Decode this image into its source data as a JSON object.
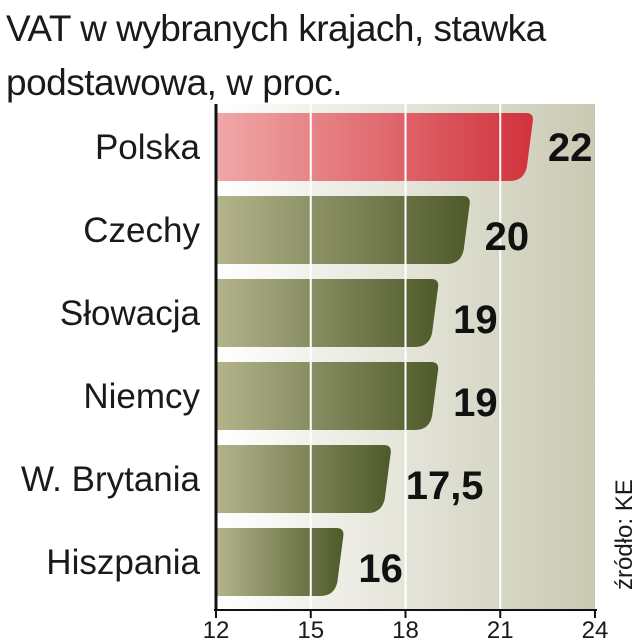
{
  "chart_data": {
    "type": "bar",
    "orientation": "horizontal",
    "title": "VAT w wybranych krajach, stawka podstawowa, w proc.",
    "categories": [
      "Polska",
      "Czechy",
      "Słowacja",
      "Niemcy",
      "W. Brytania",
      "Hiszpania"
    ],
    "values": [
      22,
      20,
      19,
      19,
      17.5,
      16
    ],
    "value_labels": [
      "22",
      "20",
      "19",
      "19",
      "17,5",
      "16"
    ],
    "xlim": [
      12,
      24
    ],
    "xticks": [
      12,
      15,
      18,
      21,
      24
    ],
    "xtick_labels": [
      "12",
      "15",
      "18",
      "21",
      "24"
    ],
    "grid": true,
    "source": "źródło: KE",
    "colors": {
      "highlight_light": "#f0a8a8",
      "highlight_dark": "#d2323c",
      "highlight_text": "#c41e3a",
      "bar_light": "#b4b48c",
      "bar_dark": "#4e5a2a",
      "panel_light": "#ffffff",
      "panel_dark": "#c9c9b3"
    }
  }
}
